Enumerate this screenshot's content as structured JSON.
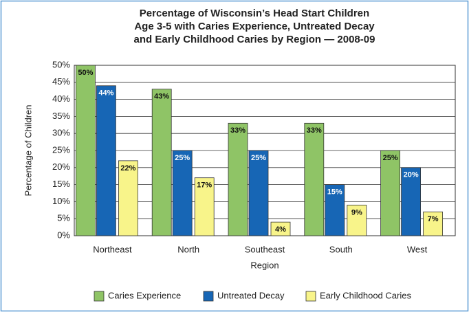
{
  "chart_data": {
    "type": "bar",
    "title": [
      "Percentage of Wisconsin’s Head Start Children",
      "Age 3-5 with Caries Experience, Untreated Decay",
      "and Early Childhood Caries by Region — 2008-09"
    ],
    "x_label": "Region",
    "y_label": "Percentage of Children",
    "categories": [
      "Northeast",
      "North",
      "Southeast",
      "South",
      "West"
    ],
    "series": [
      {
        "name": "Caries Experience",
        "color": "#8fc466",
        "label_color": "#111",
        "values": [
          50,
          43,
          33,
          33,
          25
        ],
        "value_labels": [
          "50%",
          "43%",
          "33%",
          "33%",
          "25%"
        ]
      },
      {
        "name": "Untreated Decay",
        "color": "#1766b5",
        "label_color": "#fff",
        "values": [
          44,
          25,
          25,
          15,
          20
        ],
        "value_labels": [
          "44%",
          "25%",
          "25%",
          "15%",
          "20%"
        ]
      },
      {
        "name": "Early Childhood Caries",
        "color": "#f8f48a",
        "label_color": "#111",
        "values": [
          22,
          17,
          4,
          9,
          7
        ],
        "value_labels": [
          "22%",
          "17%",
          "4%",
          "9%",
          "7%"
        ]
      }
    ],
    "ylim": [
      0,
      50
    ],
    "yticks": [
      {
        "value": 0,
        "label": "0%"
      },
      {
        "value": 5,
        "label": "5%"
      },
      {
        "value": 10,
        "label": "10%"
      },
      {
        "value": 15,
        "label": "15%"
      },
      {
        "value": 20,
        "label": "20%"
      },
      {
        "value": 25,
        "label": "25%"
      },
      {
        "value": 30,
        "label": "30%"
      },
      {
        "value": 35,
        "label": "35%"
      },
      {
        "value": 40,
        "label": "40%"
      },
      {
        "value": 45,
        "label": "45%"
      },
      {
        "value": 50,
        "label": "50%"
      }
    ],
    "grid": true,
    "legend": "bottom"
  }
}
